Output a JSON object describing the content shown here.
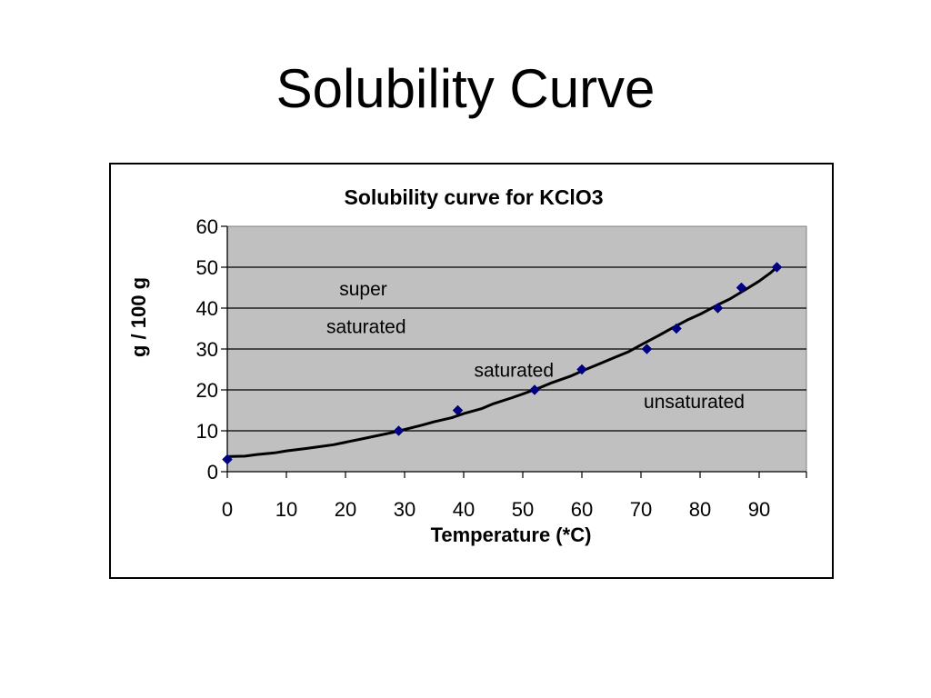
{
  "slide": {
    "title": "Solubility Curve"
  },
  "colors": {
    "plot_area": "#c0c0c0",
    "curve": "#000000",
    "marker": "#000080",
    "grid": "#000000"
  },
  "chart_data": {
    "type": "line",
    "title": "Solubility curve for KClO3",
    "xlabel": "Temperature (*C)",
    "ylabel": "g / 100 g",
    "xlim": [
      0,
      98
    ],
    "ylim": [
      0,
      60
    ],
    "xticks": [
      0,
      10,
      20,
      30,
      40,
      50,
      60,
      70,
      80,
      90
    ],
    "yticks": [
      0,
      10,
      20,
      30,
      40,
      50,
      60
    ],
    "grid": true,
    "legend": "none",
    "series": [
      {
        "marker": "diamond",
        "x": [
          0,
          29,
          39,
          52,
          60,
          71,
          76,
          83,
          87,
          93
        ],
        "y": [
          3,
          10,
          15,
          20,
          25,
          30,
          35,
          40,
          45,
          50
        ]
      }
    ],
    "curve": {
      "x": [
        0,
        3,
        5,
        8,
        10,
        13,
        15,
        18,
        20,
        23,
        25,
        28,
        30,
        33,
        35,
        38,
        40,
        43,
        45,
        48,
        50,
        53,
        55,
        58,
        60,
        63,
        65,
        68,
        70,
        73,
        75,
        78,
        80,
        83,
        85,
        88,
        90,
        92,
        93
      ],
      "y": [
        3.7,
        3.8,
        4.2,
        4.6,
        5.1,
        5.6,
        6.0,
        6.6,
        7.2,
        8.1,
        8.7,
        9.6,
        10.3,
        11.4,
        12.2,
        13.2,
        14.2,
        15.4,
        16.6,
        18.0,
        19.0,
        20.6,
        21.8,
        23.3,
        24.6,
        26.4,
        27.6,
        29.4,
        31.0,
        33.3,
        34.9,
        37.2,
        38.5,
        40.8,
        42.2,
        44.8,
        46.6,
        48.7,
        50.0
      ]
    },
    "annotations": [
      {
        "text": "super",
        "x": 23,
        "y": 44.7
      },
      {
        "text": "saturated",
        "x": 23.5,
        "y": 35.5
      },
      {
        "text": "saturated",
        "x": 48.5,
        "y": 24.8
      },
      {
        "text": "unsaturated",
        "x": 79,
        "y": 17.1
      }
    ]
  }
}
